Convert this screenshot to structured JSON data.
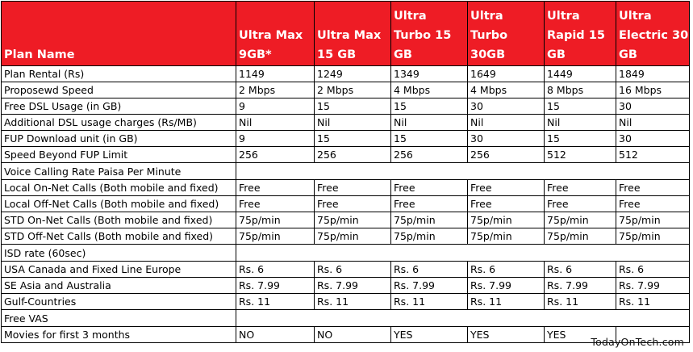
{
  "header": {
    "plan_name_label": "Plan Name",
    "plans": [
      {
        "lines": [
          "Ultra Max",
          "9GB*"
        ]
      },
      {
        "lines": [
          "Ultra Max",
          "15 GB"
        ]
      },
      {
        "lines": [
          "Ultra",
          "Turbo 15",
          "GB"
        ]
      },
      {
        "lines": [
          "Ultra",
          "Turbo",
          "30GB"
        ]
      },
      {
        "lines": [
          "Ultra",
          "Rapid 15",
          "GB"
        ]
      },
      {
        "lines": [
          "Ultra",
          "Electric 30",
          "GB"
        ]
      }
    ]
  },
  "rows": [
    {
      "type": "data",
      "label": "Plan Rental (Rs)",
      "bold": true,
      "values": [
        "1149",
        "1249",
        "1349",
        "1649",
        "1449",
        "1849"
      ]
    },
    {
      "type": "data",
      "label": "Proposewd Speed",
      "bold": false,
      "values": [
        "2 Mbps",
        "2 Mbps",
        "4 Mbps",
        "4 Mbps",
        "8 Mbps",
        "16 Mbps"
      ]
    },
    {
      "type": "data",
      "label": "Free DSL Usage (in GB)",
      "bold": false,
      "values": [
        "9",
        "15",
        "15",
        "30",
        "15",
        "30"
      ]
    },
    {
      "type": "data",
      "label": "Additional DSL usage charges (Rs/MB)",
      "bold": false,
      "values": [
        "Nil",
        "Nil",
        "Nil",
        "Nil",
        "Nil",
        "Nil"
      ]
    },
    {
      "type": "data",
      "label": "FUP Download unit (in GB)",
      "bold": false,
      "values": [
        "9",
        "15",
        "15",
        "30",
        "15",
        "30"
      ]
    },
    {
      "type": "data",
      "label": "Speed Beyond FUP Limit",
      "bold": false,
      "values": [
        "256",
        "256",
        "256",
        "256",
        "512",
        "512"
      ]
    },
    {
      "type": "section",
      "label": "Voice Calling Rate Paisa Per Minute"
    },
    {
      "type": "data",
      "label": "Local On-Net Calls (Both mobile and fixed)",
      "bold": true,
      "values": [
        "Free",
        "Free",
        "Free",
        "Free",
        "Free",
        "Free"
      ]
    },
    {
      "type": "data",
      "label": "Local Off-Net Calls (Both mobile and fixed)",
      "bold": true,
      "values": [
        "Free",
        "Free",
        "Free",
        "Free",
        "Free",
        "Free"
      ]
    },
    {
      "type": "data",
      "label": "STD On-Net Calls (Both mobile and fixed)",
      "bold": false,
      "values": [
        "75p/min",
        "75p/min",
        "75p/min",
        "75p/min",
        "75p/min",
        "75p/min"
      ]
    },
    {
      "type": "data",
      "label": "STD Off-Net Calls (Both mobile and fixed)",
      "bold": false,
      "values": [
        "75p/min",
        "75p/min",
        "75p/min",
        "75p/min",
        "75p/min",
        "75p/min"
      ]
    },
    {
      "type": "section",
      "label": "ISD rate (60sec)"
    },
    {
      "type": "data",
      "label": "USA Canada and Fixed Line Europe",
      "bold": false,
      "values": [
        "Rs. 6",
        "Rs. 6",
        "Rs. 6",
        "Rs. 6",
        "Rs. 6",
        "Rs. 6"
      ]
    },
    {
      "type": "data",
      "label": "SE Asia and Australia",
      "bold": false,
      "values": [
        "Rs. 7.99",
        "Rs. 7.99",
        "Rs. 7.99",
        "Rs. 7.99",
        "Rs. 7.99",
        "Rs. 7.99"
      ]
    },
    {
      "type": "data",
      "label": "Gulf-Countries",
      "bold": false,
      "values": [
        "Rs. 11",
        "Rs. 11",
        "Rs. 11",
        "Rs. 11",
        "Rs. 11",
        "Rs. 11"
      ]
    },
    {
      "type": "section",
      "label": "Free VAS"
    },
    {
      "type": "data",
      "label": "Movies for first 3 months",
      "bold": false,
      "values": [
        "NO",
        "NO",
        "YES",
        "YES",
        "YES",
        ""
      ]
    }
  ],
  "watermark": "TodayOnTech.com",
  "colors": {
    "header_bg": "#ee1c25",
    "header_text": "#ffffff",
    "border": "#000000"
  }
}
